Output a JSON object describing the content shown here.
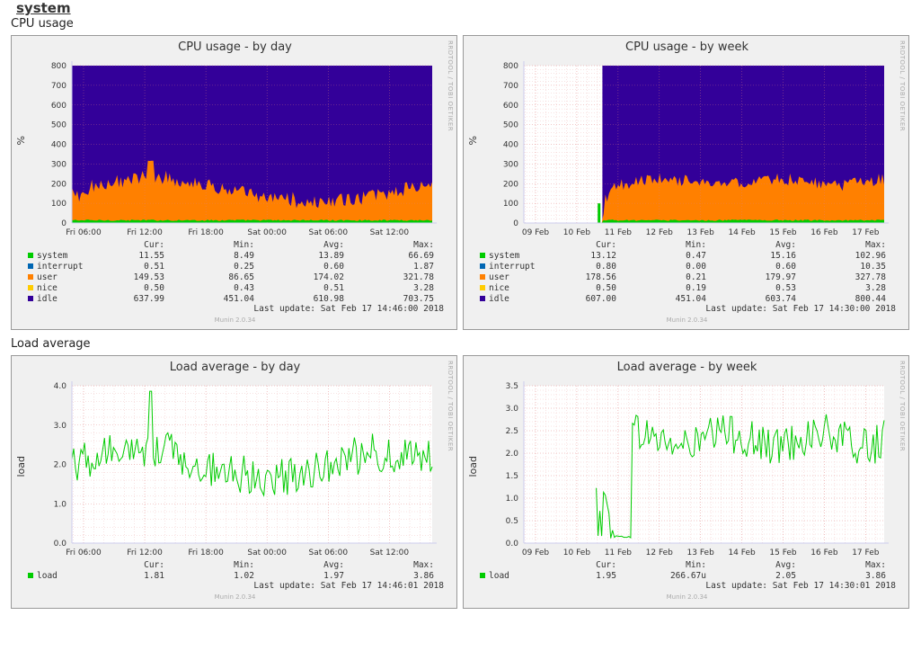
{
  "page": {
    "title": "system"
  },
  "sections": [
    {
      "title": "CPU usage",
      "graphs": [
        {
          "title": "CPU usage - by day",
          "ylabel": "%",
          "rrd": "RRDTOOL / TOBI OETIKER",
          "munin": "Munin 2.0.34",
          "yticks": [
            "0",
            "100",
            "200",
            "300",
            "400",
            "500",
            "600",
            "700",
            "800"
          ],
          "xticks": [
            "Fri 06:00",
            "Fri 12:00",
            "Fri 18:00",
            "Sat 00:00",
            "Sat 06:00",
            "Sat 12:00"
          ],
          "legend_header": [
            "Cur:",
            "Min:",
            "Avg:",
            "Max:"
          ],
          "legend": [
            {
              "name": "system",
              "color": "#00cc00",
              "cur": "11.55",
              "min": "8.49",
              "avg": "13.89",
              "max": "66.69"
            },
            {
              "name": "interrupt",
              "color": "#0066b3",
              "cur": "0.51",
              "min": "0.25",
              "avg": "0.60",
              "max": "1.87"
            },
            {
              "name": "user",
              "color": "#ff8000",
              "cur": "149.53",
              "min": "86.65",
              "avg": "174.02",
              "max": "321.78"
            },
            {
              "name": "nice",
              "color": "#ffcc00",
              "cur": "0.50",
              "min": "0.43",
              "avg": "0.51",
              "max": "3.28"
            },
            {
              "name": "idle",
              "color": "#330099",
              "cur": "637.99",
              "min": "451.04",
              "avg": "610.98",
              "max": "703.75"
            }
          ],
          "last_update": "Last update:  Sat Feb 17 14:46:00 2018"
        },
        {
          "title": "CPU usage - by week",
          "ylabel": "%",
          "rrd": "RRDTOOL / TOBI OETIKER",
          "munin": "Munin 2.0.34",
          "yticks": [
            "0",
            "100",
            "200",
            "300",
            "400",
            "500",
            "600",
            "700",
            "800"
          ],
          "xticks": [
            "09 Feb",
            "10 Feb",
            "11 Feb",
            "12 Feb",
            "13 Feb",
            "14 Feb",
            "15 Feb",
            "16 Feb",
            "17 Feb"
          ],
          "legend_header": [
            "Cur:",
            "Min:",
            "Avg:",
            "Max:"
          ],
          "legend": [
            {
              "name": "system",
              "color": "#00cc00",
              "cur": "13.12",
              "min": "0.47",
              "avg": "15.16",
              "max": "102.96"
            },
            {
              "name": "interrupt",
              "color": "#0066b3",
              "cur": "0.80",
              "min": "0.00",
              "avg": "0.60",
              "max": "10.35"
            },
            {
              "name": "user",
              "color": "#ff8000",
              "cur": "178.56",
              "min": "0.21",
              "avg": "179.97",
              "max": "327.78"
            },
            {
              "name": "nice",
              "color": "#ffcc00",
              "cur": "0.50",
              "min": "0.19",
              "avg": "0.53",
              "max": "3.28"
            },
            {
              "name": "idle",
              "color": "#330099",
              "cur": "607.00",
              "min": "451.04",
              "avg": "603.74",
              "max": "800.44"
            }
          ],
          "last_update": "Last update:  Sat Feb 17 14:30:00 2018"
        }
      ]
    },
    {
      "title": "Load average",
      "graphs": [
        {
          "title": "Load average - by day",
          "ylabel": "load",
          "rrd": "RRDTOOL / TOBI OETIKER",
          "munin": "Munin 2.0.34",
          "yticks": [
            "0.0",
            "1.0",
            "2.0",
            "3.0",
            "4.0"
          ],
          "xticks": [
            "Fri 06:00",
            "Fri 12:00",
            "Fri 18:00",
            "Sat 00:00",
            "Sat 06:00",
            "Sat 12:00"
          ],
          "legend_header": [
            "Cur:",
            "Min:",
            "Avg:",
            "Max:"
          ],
          "legend": [
            {
              "name": "load",
              "color": "#00cc00",
              "cur": "1.81",
              "min": "1.02",
              "avg": "1.97",
              "max": "3.86"
            }
          ],
          "last_update": "Last update:  Sat Feb 17 14:46:01 2018"
        },
        {
          "title": "Load average - by week",
          "ylabel": "load",
          "rrd": "RRDTOOL / TOBI OETIKER",
          "munin": "Munin 2.0.34",
          "yticks": [
            "0.0",
            "0.5",
            "1.0",
            "1.5",
            "2.0",
            "2.5",
            "3.0",
            "3.5"
          ],
          "xticks": [
            "09 Feb",
            "10 Feb",
            "11 Feb",
            "12 Feb",
            "13 Feb",
            "14 Feb",
            "15 Feb",
            "16 Feb",
            "17 Feb"
          ],
          "legend_header": [
            "Cur:",
            "Min:",
            "Avg:",
            "Max:"
          ],
          "legend": [
            {
              "name": "load",
              "color": "#00cc00",
              "cur": "1.95",
              "min": "266.67u",
              "avg": "2.05",
              "max": "3.86"
            }
          ],
          "last_update": "Last update:  Sat Feb 17 14:30:01 2018"
        }
      ]
    }
  ],
  "chart_data": [
    {
      "type": "area",
      "title": "CPU usage - by day",
      "ylabel": "%",
      "ylim": [
        0,
        800
      ],
      "categories": [
        "Fri 06:00",
        "Fri 12:00",
        "Fri 18:00",
        "Sat 00:00",
        "Sat 06:00",
        "Sat 12:00"
      ],
      "series": [
        {
          "name": "system",
          "values": [
            12,
            14,
            13,
            12,
            14,
            12
          ]
        },
        {
          "name": "interrupt",
          "values": [
            0.6,
            0.6,
            0.6,
            0.5,
            0.6,
            0.5
          ]
        },
        {
          "name": "user",
          "values": [
            150,
            230,
            200,
            110,
            160,
            150
          ]
        },
        {
          "name": "nice",
          "values": [
            0.5,
            0.5,
            0.5,
            0.5,
            0.5,
            0.5
          ]
        },
        {
          "name": "idle",
          "values": [
            637,
            555,
            587,
            677,
            625,
            638
          ]
        }
      ]
    },
    {
      "type": "area",
      "title": "CPU usage - by week",
      "ylabel": "%",
      "ylim": [
        0,
        800
      ],
      "categories": [
        "09 Feb",
        "10 Feb",
        "11 Feb",
        "12 Feb",
        "13 Feb",
        "14 Feb",
        "15 Feb",
        "16 Feb",
        "17 Feb"
      ],
      "series": [
        {
          "name": "system",
          "values": [
            0,
            0,
            14,
            15,
            15,
            15,
            15,
            15,
            13
          ]
        },
        {
          "name": "interrupt",
          "values": [
            0,
            0,
            0.6,
            0.6,
            0.6,
            0.6,
            0.6,
            0.6,
            0.8
          ]
        },
        {
          "name": "user",
          "values": [
            0,
            0,
            180,
            200,
            190,
            185,
            180,
            175,
            178
          ]
        },
        {
          "name": "nice",
          "values": [
            0,
            0,
            0.5,
            0.5,
            0.5,
            0.5,
            0.5,
            0.5,
            0.5
          ]
        },
        {
          "name": "idle",
          "values": [
            0,
            0,
            605,
            585,
            595,
            600,
            605,
            610,
            607
          ]
        }
      ]
    },
    {
      "type": "line",
      "title": "Load average - by day",
      "ylabel": "load",
      "ylim": [
        0,
        4
      ],
      "categories": [
        "Fri 06:00",
        "Fri 12:00",
        "Fri 18:00",
        "Sat 00:00",
        "Sat 06:00",
        "Sat 12:00"
      ],
      "series": [
        {
          "name": "load",
          "values": [
            2.0,
            2.5,
            2.2,
            1.6,
            2.0,
            2.1
          ]
        }
      ]
    },
    {
      "type": "line",
      "title": "Load average - by week",
      "ylabel": "load",
      "ylim": [
        0,
        3.5
      ],
      "categories": [
        "09 Feb",
        "10 Feb",
        "11 Feb",
        "12 Feb",
        "13 Feb",
        "14 Feb",
        "15 Feb",
        "16 Feb",
        "17 Feb"
      ],
      "series": [
        {
          "name": "load",
          "values": [
            0,
            0,
            0.1,
            2.5,
            2.2,
            2.3,
            2.2,
            2.1,
            1.95
          ]
        }
      ]
    }
  ]
}
